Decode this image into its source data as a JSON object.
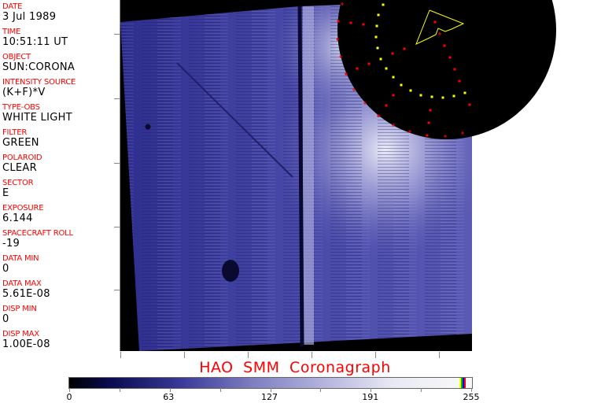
{
  "fields": [
    {
      "label": "DATE",
      "value": "3 Jul 1989"
    },
    {
      "label": "TIME",
      "value": "10:51:11 UT"
    },
    {
      "label": "OBJECT",
      "value": "SUN:CORONA"
    },
    {
      "label": "INTENSITY SOURCE",
      "value": "(K+F)*V"
    },
    {
      "label": "TYPE-OBS",
      "value": "WHITE LIGHT"
    },
    {
      "label": "FILTER",
      "value": "GREEN"
    },
    {
      "label": "POLAROID",
      "value": "CLEAR"
    },
    {
      "label": "SECTOR",
      "value": "E"
    },
    {
      "label": "EXPOSURE",
      "value": "6.144"
    },
    {
      "label": "SPACECRAFT ROLL",
      "value": "-19"
    },
    {
      "label": "DATA MIN",
      "value": "0"
    },
    {
      "label": "DATA MAX",
      "value": "5.61E-08"
    },
    {
      "label": "DISP MIN",
      "value": "0"
    },
    {
      "label": "DISP MAX",
      "value": "1.00E-08"
    }
  ],
  "title": "HAO  SMM Coronagraph",
  "colorbar": {
    "labels": [
      "0",
      "63",
      "127",
      "191",
      "255"
    ],
    "min": 0,
    "max": 255,
    "end_colors": [
      "#ffff00",
      "#00c000",
      "#0000ff",
      "#ff0000"
    ]
  },
  "colors": {
    "label": "#ff0000",
    "overlay_yellow": "#ffff00",
    "overlay_red": "#ff0000",
    "image_blue": "#3a3aa0"
  }
}
